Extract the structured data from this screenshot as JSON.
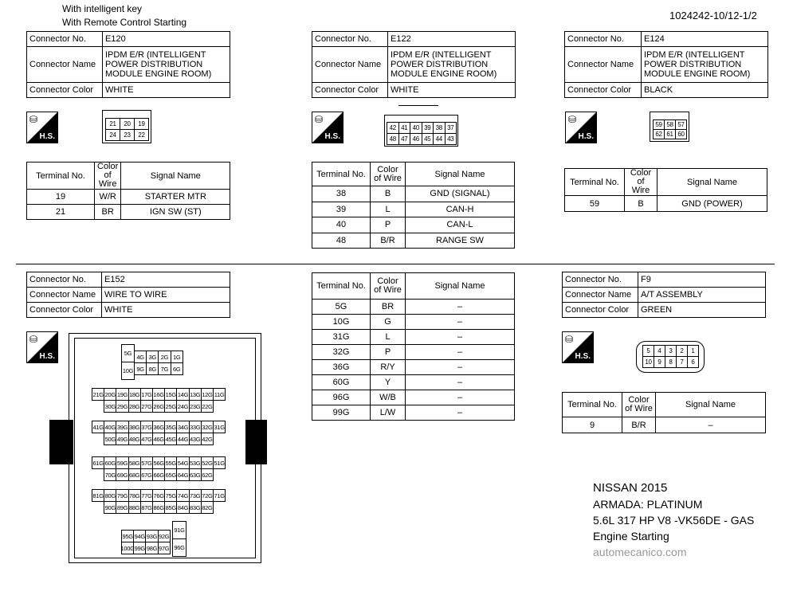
{
  "header": {
    "line1": "With intelligent key",
    "line2": "With Remote Control Starting",
    "code": "1024242-10/12-1/2"
  },
  "labels": {
    "connector_no": "Connector No.",
    "connector_name": "Connector Name",
    "connector_color": "Connector Color",
    "terminal_no": "Terminal No.",
    "color_of_wire": "Color of Wire",
    "signal_name": "Signal Name",
    "hs": "H.S."
  },
  "connectors": [
    {
      "no": "E120",
      "name": "IPDM E/R (INTELLIGENT POWER DISTRIBUTION MODULE ENGINE ROOM)",
      "color": "WHITE",
      "pins": [
        [
          "21",
          "20",
          "19"
        ],
        [
          "24",
          "23",
          "22"
        ]
      ],
      "terminals": [
        [
          "19",
          "W/R",
          "STARTER MTR"
        ],
        [
          "21",
          "BR",
          "IGN SW (ST)"
        ]
      ]
    },
    {
      "no": "E122",
      "name": "IPDM E/R (INTELLIGENT POWER DISTRIBUTION MODULE ENGINE ROOM)",
      "color": "WHITE",
      "pins": [
        [
          "42",
          "41",
          "40",
          "39",
          "38",
          "37"
        ],
        [
          "48",
          "47",
          "46",
          "45",
          "44",
          "43"
        ]
      ],
      "terminals": [
        [
          "38",
          "B",
          "GND (SIGNAL)"
        ],
        [
          "39",
          "L",
          "CAN-H"
        ],
        [
          "40",
          "P",
          "CAN-L"
        ],
        [
          "48",
          "B/R",
          "RANGE SW"
        ]
      ]
    },
    {
      "no": "E124",
      "name": "IPDM E/R (INTELLIGENT POWER DISTRIBUTION MODULE ENGINE ROOM)",
      "color": "BLACK",
      "pins": [
        [
          "59",
          "58",
          "57"
        ],
        [
          "62",
          "61",
          "60"
        ]
      ],
      "terminals": [
        [
          "59",
          "B",
          "GND (POWER)"
        ]
      ]
    },
    {
      "no": "E152",
      "name": "WIRE TO WIRE",
      "color": "WHITE",
      "terminals": [
        [
          "5G",
          "BR",
          "–"
        ],
        [
          "10G",
          "G",
          "–"
        ],
        [
          "31G",
          "L",
          "–"
        ],
        [
          "32G",
          "P",
          "–"
        ],
        [
          "36G",
          "R/Y",
          "–"
        ],
        [
          "60G",
          "Y",
          "–"
        ],
        [
          "96G",
          "W/B",
          "–"
        ],
        [
          "99G",
          "L/W",
          "–"
        ]
      ]
    },
    {
      "no": "F9",
      "name": "A/T ASSEMBLY",
      "color": "GREEN",
      "pins": [
        [
          "5",
          "4",
          "3",
          "2",
          "1"
        ],
        [
          "10",
          "9",
          "8",
          "7",
          "6"
        ]
      ],
      "terminals": [
        [
          "9",
          "B/R",
          "–"
        ]
      ]
    }
  ],
  "e152_pins": {
    "top": {
      "tall_left": [
        "5G",
        "10G"
      ],
      "row1": [
        "4G",
        "3G",
        "2G",
        "1G"
      ],
      "row2": [
        "9G",
        "8G",
        "7G",
        "6G"
      ]
    },
    "groups": [
      [
        [
          "21G",
          "20G",
          "19G",
          "18G",
          "17G",
          "16G",
          "15G",
          "14G",
          "13G",
          "12G",
          "11G"
        ],
        [
          "30G",
          "29G",
          "28G",
          "27G",
          "26G",
          "25G",
          "24G",
          "23G",
          "22G"
        ]
      ],
      [
        [
          "41G",
          "40G",
          "39G",
          "38G",
          "37G",
          "36G",
          "35G",
          "34G",
          "33G",
          "32G",
          "31G"
        ],
        [
          "50G",
          "49G",
          "48G",
          "47G",
          "46G",
          "45G",
          "44G",
          "43G",
          "42G"
        ]
      ],
      [
        [
          "61G",
          "60G",
          "59G",
          "58G",
          "57G",
          "56G",
          "55G",
          "54G",
          "53G",
          "52G",
          "51G"
        ],
        [
          "70G",
          "69G",
          "68G",
          "67G",
          "66G",
          "65G",
          "64G",
          "63G",
          "62G"
        ]
      ],
      [
        [
          "81G",
          "80G",
          "79G",
          "78G",
          "77G",
          "76G",
          "75G",
          "74G",
          "73G",
          "72G",
          "71G"
        ],
        [
          "90G",
          "89G",
          "88G",
          "87G",
          "86G",
          "85G",
          "84G",
          "83G",
          "82G"
        ]
      ]
    ],
    "bottom": {
      "row1": [
        "95G",
        "94G",
        "93G",
        "92G"
      ],
      "row2": [
        "100G",
        "99G",
        "98G",
        "97G"
      ],
      "tall_right": [
        "91G",
        "96G"
      ]
    }
  },
  "vehicle": {
    "make": "NISSAN 2015",
    "model": "ARMADA: PLATINUM",
    "engine": "5.6L 317 HP  V8 -VK56DE - GAS",
    "system": "Engine Starting",
    "source": "automecanico.com"
  }
}
